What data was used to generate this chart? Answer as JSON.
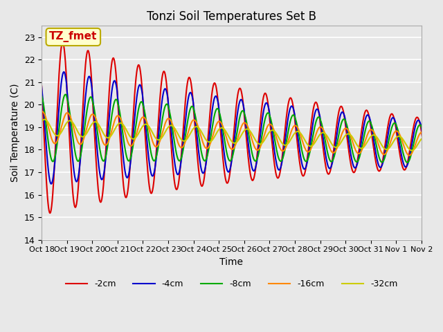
{
  "title": "Tonzi Soil Temperatures Set B",
  "xlabel": "Time",
  "ylabel": "Soil Temperature (C)",
  "ylim": [
    14.0,
    23.5
  ],
  "yticks": [
    14.0,
    15.0,
    16.0,
    17.0,
    18.0,
    19.0,
    20.0,
    21.0,
    22.0,
    23.0
  ],
  "background_color": "#e8e8e8",
  "grid_color": "#ffffff",
  "annotation_text": "TZ_fmet",
  "annotation_bg": "#ffffcc",
  "annotation_border": "#bbaa00",
  "annotation_text_color": "#cc0000",
  "legend_labels": [
    "-2cm",
    "-4cm",
    "-8cm",
    "-16cm",
    "-32cm"
  ],
  "line_colors": [
    "#dd0000",
    "#0000cc",
    "#00aa00",
    "#ff8800",
    "#cccc00"
  ],
  "line_widths": [
    1.5,
    1.5,
    1.5,
    1.5,
    1.5
  ],
  "xtick_labels": [
    "Oct 18",
    "Oct 19",
    "Oct 20",
    "Oct 21",
    "Oct 22",
    "Oct 23",
    "Oct 24",
    "Oct 25",
    "Oct 26",
    "Oct 27",
    "Oct 28",
    "Oct 29",
    "Oct 30",
    "Oct 31",
    "Nov 1",
    "Nov 2"
  ],
  "num_days": 16,
  "samples_per_day": 48,
  "depth_params": {
    "-2cm": {
      "mean": 19.0,
      "amp": 3.8,
      "phase": 0.0,
      "amp_decay": 0.92
    },
    "-4cm": {
      "mean": 19.0,
      "amp": 2.5,
      "phase": 0.3,
      "amp_decay": 0.94
    },
    "-8cm": {
      "mean": 19.0,
      "amp": 1.5,
      "phase": 0.7,
      "amp_decay": 0.96
    },
    "-16cm": {
      "mean": 19.0,
      "amp": 0.7,
      "phase": 1.2,
      "amp_decay": 0.98
    },
    "-32cm": {
      "mean": 19.0,
      "amp": 0.35,
      "phase": 1.8,
      "amp_decay": 0.99
    }
  }
}
